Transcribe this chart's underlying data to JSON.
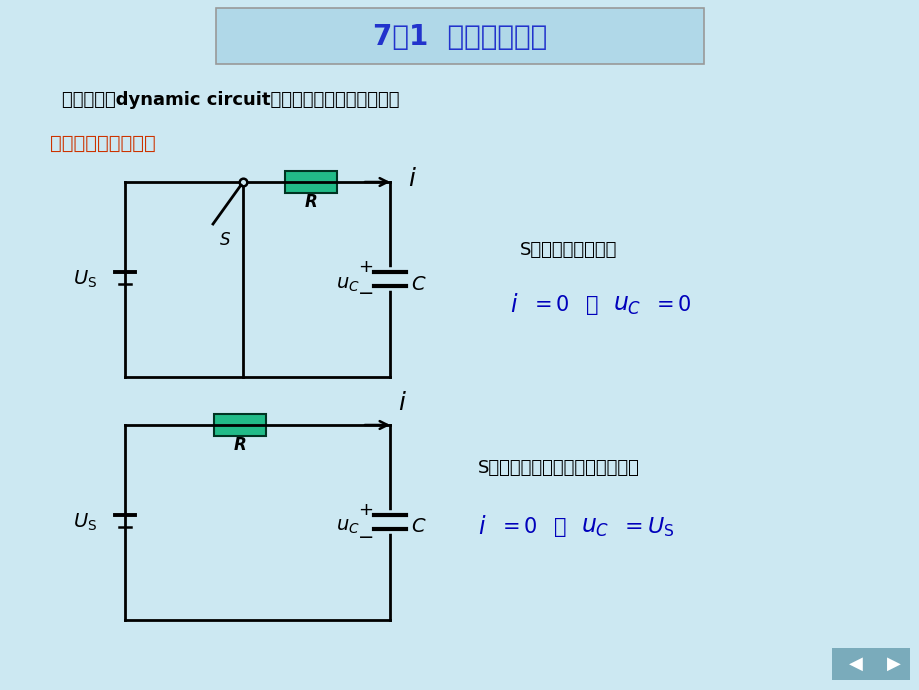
{
  "title": "7．1  动态电路概述",
  "bg_color": "#cce8f2",
  "title_color": "#2233cc",
  "title_box_bg": "#b0d8e8",
  "subtitle": "动态电路（dynamic circuit）：用微分方程描述的电路",
  "section1": "一、电路的过渡过程",
  "section1_color": "#cc3300",
  "cc": "#000000",
  "blue": "#0000bb",
  "resistor_fill": "#22bb88",
  "eq1_desc": "S未动作前（稳态）",
  "eq2_desc": "S接通电源后很长时间（新稳态）"
}
